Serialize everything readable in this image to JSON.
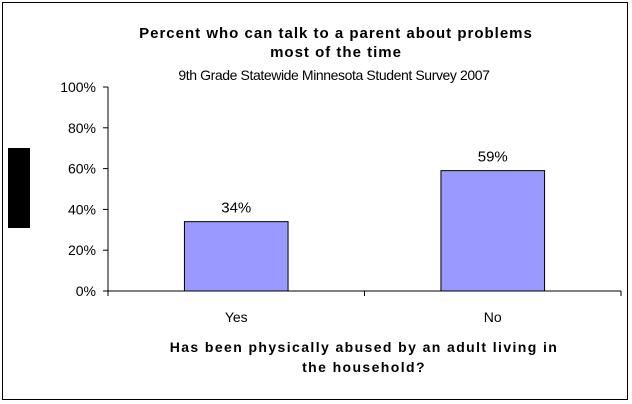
{
  "chart_data": {
    "type": "bar",
    "title_lines": [
      "Percent who can talk to a parent about problems",
      "most of the time"
    ],
    "subtitle": "9th Grade Statewide Minnesota Student Survey 2007",
    "categories": [
      "Yes",
      "No"
    ],
    "values": [
      34,
      59
    ],
    "data_labels": [
      "34%",
      "59%"
    ],
    "xlabel_lines": [
      "Has been physically abused by an adult living in",
      "the household?"
    ],
    "ylabel": "",
    "ylim": [
      0,
      100
    ],
    "yticks": [
      0,
      20,
      40,
      60,
      80,
      100
    ],
    "ytick_labels": [
      "0%",
      "20%",
      "40%",
      "60%",
      "80%",
      "100%"
    ],
    "grid": false,
    "legend": "none",
    "colors": {
      "bar_fill": "#9999ff",
      "bar_stroke": "#000000",
      "axis": "#000000"
    }
  }
}
